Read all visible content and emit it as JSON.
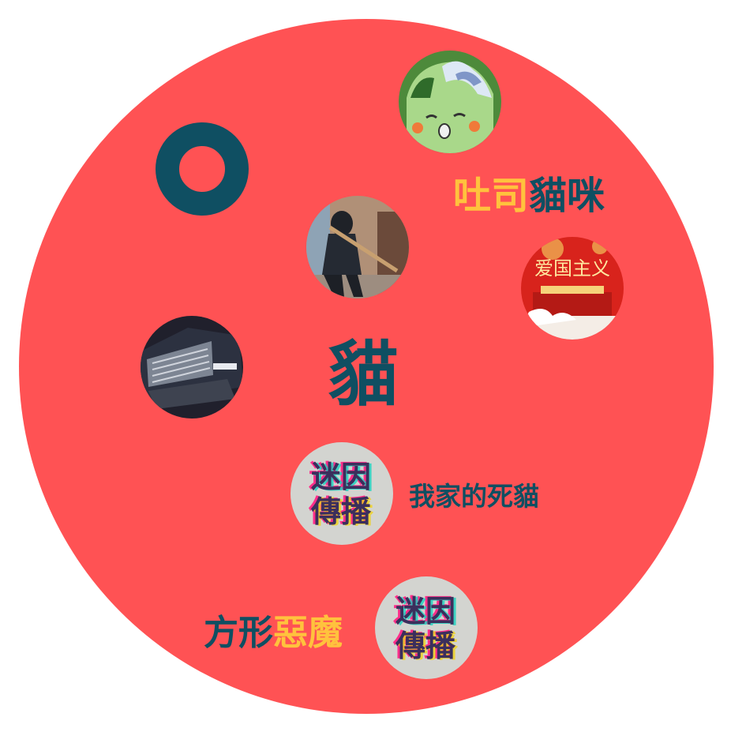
{
  "background": {
    "circle_color": "#ff5254",
    "ring_color": "#0f4f62",
    "accent_teal": "#0f4f62",
    "accent_yellow": "#ffc23d"
  },
  "labels": {
    "toast_cat": {
      "part1": "吐司",
      "part2": "貓咪"
    },
    "cat": "貓",
    "my_dead_cat": "我家的死貓",
    "square_demon": {
      "part1": "方形",
      "part2": "惡魔"
    }
  },
  "avatars": {
    "anime_avatar": {
      "icon": "anime-character-icon"
    },
    "patriot_poster": {
      "text": "爱国主义"
    },
    "ninja_photo": {
      "icon": "ninja-figure-icon"
    },
    "suv_photo": {
      "icon": "suv-car-icon"
    },
    "glitch_stamp_1": {
      "lines": [
        "迷因",
        "傳播"
      ]
    },
    "glitch_stamp_2": {
      "lines": [
        "迷因",
        "傳播"
      ]
    }
  }
}
